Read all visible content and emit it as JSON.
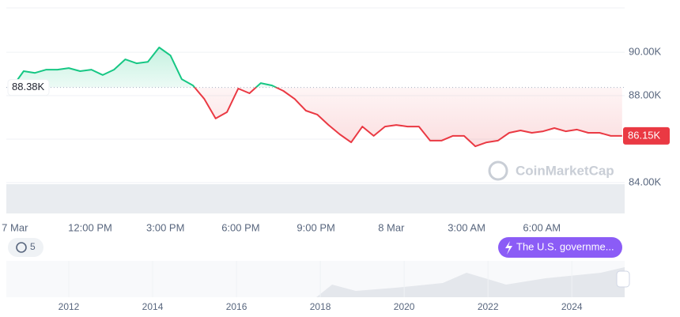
{
  "chart_data": {
    "type": "line",
    "watermark": "CoinMarketCap",
    "x": [
      8.9,
      9.35,
      9.8,
      10.25,
      10.7,
      11.15,
      11.6,
      12.05,
      12.5,
      12.95,
      13.4,
      13.85,
      14.3,
      14.75,
      15.2,
      15.65,
      16.1,
      16.55,
      17.0,
      17.45,
      17.9,
      18.35,
      18.8,
      19.25,
      19.7,
      20.15,
      20.6,
      21.05,
      21.5,
      21.95,
      22.4,
      22.85,
      23.3,
      23.75,
      24.2,
      24.65,
      25.1,
      25.55,
      26.0,
      26.45,
      26.9,
      27.35,
      27.8,
      28.25,
      28.7,
      29.15,
      29.6,
      30.05,
      30.5,
      30.95,
      31.4,
      31.85,
      32.3,
      32.75,
      33.2
    ],
    "series": [
      {
        "name": "Price",
        "color_up": "#16c784",
        "color_down": "#ea3943",
        "values": [
          88400,
          89130,
          89050,
          89200,
          89200,
          89270,
          89130,
          89200,
          88950,
          89200,
          89670,
          89490,
          89560,
          90220,
          89850,
          88760,
          88470,
          87850,
          86950,
          87240,
          88330,
          88110,
          88580,
          88470,
          88220,
          87850,
          87310,
          87130,
          86650,
          86220,
          85850,
          86580,
          86150,
          86580,
          86650,
          86580,
          86580,
          85930,
          85930,
          86150,
          86150,
          85670,
          85850,
          85930,
          86290,
          86400,
          86290,
          86360,
          86510,
          86360,
          86440,
          86290,
          86290,
          86150,
          86150
        ]
      }
    ],
    "reference_line": {
      "value": 88380,
      "label": "88.38K"
    },
    "last_price": {
      "value": 86150,
      "label": "86.15K"
    },
    "xlim": [
      8.66,
      33.3
    ],
    "xticks": [
      {
        "value": 9,
        "label": "7 Mar"
      },
      {
        "value": 12,
        "label": "12:00 PM"
      },
      {
        "value": 15,
        "label": "3:00 PM"
      },
      {
        "value": 18,
        "label": "6:00 PM"
      },
      {
        "value": 21,
        "label": "9:00 PM"
      },
      {
        "value": 24,
        "label": "8 Mar"
      },
      {
        "value": 27,
        "label": "3:00 AM"
      },
      {
        "value": 30,
        "label": "6:00 AM"
      }
    ],
    "ylim": [
      82580,
      92040
    ],
    "yticks": [
      {
        "value": 84000,
        "label": "84.00K"
      },
      {
        "value": 86000,
        "label": "86.00K"
      },
      {
        "value": 88000,
        "label": "88.00K"
      },
      {
        "value": 90000,
        "label": "90.00K"
      }
    ],
    "grid": true,
    "history_count": 5,
    "news_headline": "The U.S. governme...",
    "navigator": {
      "xlim": [
        2010.51,
        2025.26
      ],
      "xticks": [
        2012,
        2014,
        2016,
        2018,
        2020,
        2022,
        2024
      ]
    }
  }
}
